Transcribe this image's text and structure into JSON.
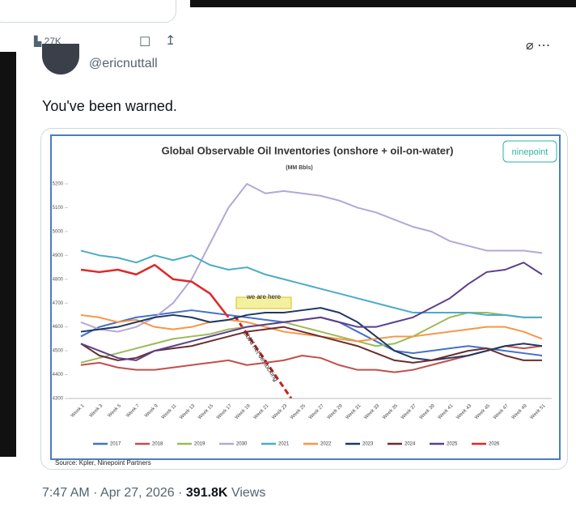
{
  "stats": {
    "views": "27K"
  },
  "tweet": {
    "handle": "@ericnuttall",
    "text": "You've been warned."
  },
  "chart_data": {
    "type": "line",
    "title": "Global Observable Oil Inventories (onshore + oil-on-water)",
    "subtitle": "(MM Bbls)",
    "logo": "ninepoint",
    "source": "Source: Kpler, Ninepoint Partners",
    "categories": [
      "Week 1",
      "Week 3",
      "Week 5",
      "Week 7",
      "Week 9",
      "Week 11",
      "Week 13",
      "Week 15",
      "Week 17",
      "Week 19",
      "Week 21",
      "Week 23",
      "Week 25",
      "Week 27",
      "Week 29",
      "Week 31",
      "Week 33",
      "Week 35",
      "Week 37",
      "Week 39",
      "Week 41",
      "Week 43",
      "Week 45",
      "Week 47",
      "Week 49",
      "Week 51"
    ],
    "ylim": [
      4300,
      5200
    ],
    "yticks": [
      4300,
      4400,
      4500,
      4600,
      4700,
      4800,
      4900,
      5000,
      5100,
      5200
    ],
    "annotations": [
      "we are here",
      "Bbl/d net destocking"
    ],
    "series": [
      {
        "name": "2017",
        "color": "#4472c4",
        "values": [
          4560,
          4600,
          4620,
          4640,
          4650,
          4660,
          4670,
          4660,
          4650,
          4640,
          4630,
          4620,
          4630,
          4640,
          4620,
          4580,
          4540,
          4500,
          4490,
          4500,
          4510,
          4520,
          4510,
          4500,
          4490,
          4480
        ]
      },
      {
        "name": "2018",
        "color": "#c0504d",
        "values": [
          4440,
          4450,
          4430,
          4420,
          4420,
          4430,
          4440,
          4450,
          4460,
          4440,
          4450,
          4460,
          4480,
          4470,
          4440,
          4420,
          4420,
          4410,
          4420,
          4440,
          4460,
          4480,
          4500,
          4520,
          4510,
          4520
        ]
      },
      {
        "name": "2019",
        "color": "#9bbb59",
        "values": [
          4450,
          4470,
          4490,
          4510,
          4530,
          4550,
          4560,
          4570,
          4590,
          4600,
          4610,
          4620,
          4600,
          4580,
          4560,
          4540,
          4520,
          4530,
          4560,
          4600,
          4640,
          4660,
          4660,
          4650,
          4640,
          4640
        ]
      },
      {
        "name": "2030",
        "color": "#b4a7d6",
        "values": [
          4620,
          4590,
          4580,
          4600,
          4640,
          4700,
          4800,
          4950,
          5100,
          5200,
          5160,
          5170,
          5160,
          5150,
          5130,
          5100,
          5080,
          5050,
          5020,
          5000,
          4960,
          4940,
          4920,
          4920,
          4920,
          4910
        ]
      },
      {
        "name": "2021",
        "color": "#4bacc6",
        "values": [
          4920,
          4900,
          4890,
          4870,
          4900,
          4880,
          4900,
          4860,
          4840,
          4850,
          4820,
          4800,
          4780,
          4760,
          4740,
          4720,
          4700,
          4680,
          4660,
          4660,
          4660,
          4660,
          4650,
          4650,
          4640,
          4640
        ]
      },
      {
        "name": "2022",
        "color": "#f79646",
        "values": [
          4650,
          4640,
          4620,
          4630,
          4600,
          4590,
          4600,
          4620,
          4630,
          4620,
          4600,
          4580,
          4570,
          4560,
          4550,
          4540,
          4550,
          4560,
          4560,
          4570,
          4580,
          4590,
          4600,
          4600,
          4580,
          4550
        ]
      },
      {
        "name": "2023",
        "color": "#1f3864",
        "values": [
          4580,
          4590,
          4600,
          4620,
          4640,
          4650,
          4640,
          4620,
          4630,
          4650,
          4660,
          4660,
          4670,
          4680,
          4660,
          4620,
          4560,
          4500,
          4470,
          4460,
          4470,
          4480,
          4500,
          4520,
          4530,
          4520
        ]
      },
      {
        "name": "2024",
        "color": "#6b2d2d",
        "values": [
          4530,
          4480,
          4460,
          4470,
          4500,
          4510,
          4520,
          4540,
          4560,
          4580,
          4590,
          4600,
          4580,
          4560,
          4540,
          4520,
          4490,
          4460,
          4450,
          4460,
          4480,
          4500,
          4510,
          4480,
          4460,
          4460
        ]
      },
      {
        "name": "2025",
        "color": "#5b3f8c",
        "values": [
          4530,
          4500,
          4470,
          4460,
          4500,
          4520,
          4540,
          4560,
          4580,
          4600,
          4610,
          4620,
          4630,
          4640,
          4620,
          4600,
          4600,
          4620,
          4640,
          4680,
          4720,
          4780,
          4830,
          4840,
          4870,
          4820
        ]
      },
      {
        "name": "2026",
        "color": "#e02828",
        "values": [
          4840,
          4830,
          4840,
          4820,
          4860,
          4800,
          4790,
          4740,
          4640,
          null,
          null,
          null,
          null,
          null,
          null,
          null,
          null,
          null,
          null,
          null,
          null,
          null,
          null,
          null,
          null,
          null
        ]
      }
    ]
  },
  "footer": {
    "timestamp": "7:47 AM · Apr 27, 2026 ·",
    "views": "391.8K",
    "views_label": "Views"
  }
}
